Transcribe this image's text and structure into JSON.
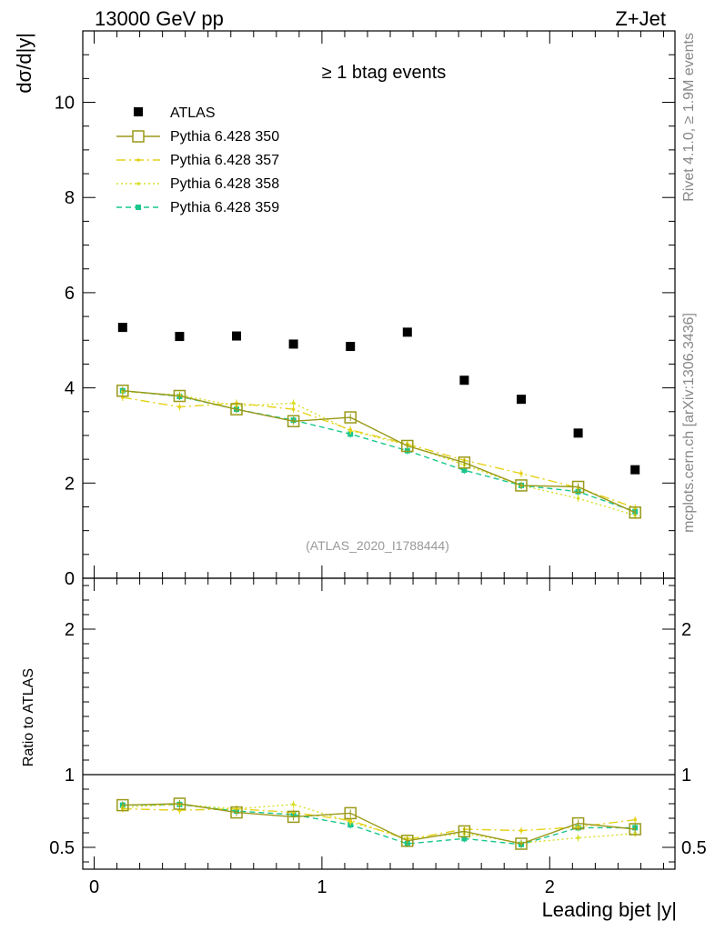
{
  "header": {
    "left_label": "13000 GeV pp",
    "right_label": "Z+Jet",
    "side_top": "Rivet 4.1.0, ≥ 1.9M events",
    "side_bottom": "mcplots.cern.ch [arXiv:1306.3436]"
  },
  "chart_data": {
    "type": "scatter",
    "title": "≥ 1 btag events",
    "watermark": "(ATLAS_2020_I1788444)",
    "xlabel": "Leading bjet |y|",
    "ylabel": "dσ/d|y|",
    "ratio_ylabel": "Ratio to ATLAS",
    "xlim": [
      -0.05,
      2.55
    ],
    "ylim": [
      0,
      11.5
    ],
    "ratio_ylim": [
      0.35,
      2.35
    ],
    "x_ticks": [
      0,
      1,
      2
    ],
    "x_tick_labels": [
      "0",
      "1",
      "2"
    ],
    "y_ticks": [
      0,
      2,
      4,
      6,
      8,
      10
    ],
    "y_tick_labels": [
      "0",
      "2",
      "4",
      "6",
      "8",
      "10"
    ],
    "ratio_ticks": [
      0.5,
      1,
      2
    ],
    "ratio_tick_labels": [
      "0.5",
      "1",
      "2"
    ],
    "x": [
      0.125,
      0.375,
      0.625,
      0.875,
      1.125,
      1.375,
      1.625,
      1.875,
      2.125,
      2.375
    ],
    "data": {
      "name": "ATLAS",
      "values": [
        5.27,
        5.08,
        5.09,
        4.92,
        4.87,
        5.17,
        4.16,
        3.76,
        3.05,
        2.28
      ]
    },
    "series": [
      {
        "name": "Pythia 6.428 350",
        "color": "#999919",
        "dash": "",
        "marker": "open-square",
        "values": [
          3.94,
          3.83,
          3.55,
          3.3,
          3.38,
          2.78,
          2.43,
          1.95,
          1.92,
          1.38
        ],
        "ratio": [
          0.79,
          0.8,
          0.74,
          0.71,
          0.735,
          0.545,
          0.61,
          0.525,
          0.665,
          0.625
        ]
      },
      {
        "name": "Pythia 6.428 357",
        "color": "#e5d219",
        "dash": "10,4,2,4",
        "marker": "dot",
        "values": [
          3.8,
          3.6,
          3.68,
          3.55,
          3.12,
          2.82,
          2.48,
          2.2,
          1.9,
          1.48
        ],
        "ratio": [
          0.765,
          0.755,
          0.765,
          0.74,
          0.685,
          0.555,
          0.625,
          0.615,
          0.64,
          0.69
        ]
      },
      {
        "name": "Pythia 6.428 358",
        "color": "#d7df29",
        "dash": "2,3",
        "marker": "dot",
        "values": [
          3.92,
          3.85,
          3.62,
          3.68,
          3.1,
          2.8,
          2.38,
          1.95,
          1.68,
          1.32
        ],
        "ratio": [
          0.775,
          0.795,
          0.765,
          0.795,
          0.675,
          0.56,
          0.595,
          0.53,
          0.565,
          0.595
        ]
      },
      {
        "name": "Pythia 6.428 359",
        "color": "#19c78c",
        "dash": "6,4",
        "marker": "small-square",
        "values": [
          3.94,
          3.82,
          3.55,
          3.32,
          3.03,
          2.68,
          2.27,
          1.95,
          1.82,
          1.4
        ],
        "ratio": [
          0.79,
          0.795,
          0.75,
          0.725,
          0.655,
          0.525,
          0.56,
          0.52,
          0.635,
          0.635
        ]
      }
    ]
  }
}
